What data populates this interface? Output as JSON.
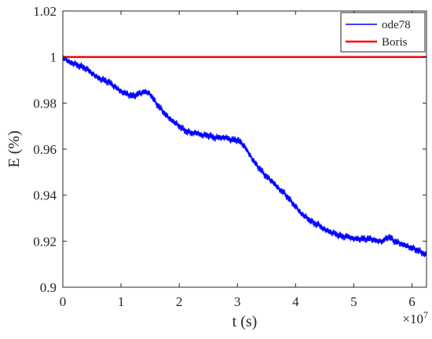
{
  "chart_data": {
    "type": "line",
    "xlabel": "t (s)",
    "ylabel": "E (%)",
    "x_exponent_label": "×10",
    "x_exponent_power": "7",
    "xlim": [
      0,
      6.25
    ],
    "ylim": [
      0.9,
      1.02
    ],
    "xticks": [
      0,
      1,
      2,
      3,
      4,
      5,
      6
    ],
    "xtick_labels": [
      "0",
      "1",
      "2",
      "3",
      "4",
      "5",
      "6"
    ],
    "yticks": [
      0.9,
      0.92,
      0.94,
      0.96,
      0.98,
      1.0,
      1.02
    ],
    "ytick_labels": [
      "0.9",
      "0.92",
      "0.94",
      "0.96",
      "0.98",
      "1",
      "1.02"
    ],
    "grid": false,
    "legend_position": "top-right",
    "x_unit_note": "t values in units of 10^7 s",
    "series": [
      {
        "name": "ode78",
        "color": "#0000ff",
        "noise_amplitude": 0.0018,
        "x": [
          0,
          0.05,
          0.1,
          0.2,
          0.3,
          0.4,
          0.5,
          0.6,
          0.7,
          0.8,
          0.9,
          1.0,
          1.1,
          1.2,
          1.3,
          1.4,
          1.5,
          1.6,
          1.7,
          1.8,
          1.9,
          2.0,
          2.1,
          2.2,
          2.3,
          2.4,
          2.5,
          2.6,
          2.7,
          2.8,
          2.9,
          3.0,
          3.1,
          3.2,
          3.3,
          3.4,
          3.5,
          3.6,
          3.7,
          3.8,
          3.9,
          4.0,
          4.1,
          4.2,
          4.3,
          4.4,
          4.5,
          4.6,
          4.7,
          4.8,
          4.9,
          5.0,
          5.1,
          5.2,
          5.3,
          5.4,
          5.5,
          5.6,
          5.7,
          5.8,
          5.9,
          6.0,
          6.1,
          6.25
        ],
        "y": [
          1.0,
          0.999,
          0.998,
          0.997,
          0.996,
          0.995,
          0.993,
          0.991,
          0.99,
          0.989,
          0.987,
          0.985,
          0.984,
          0.983,
          0.984,
          0.985,
          0.984,
          0.98,
          0.977,
          0.974,
          0.972,
          0.97,
          0.968,
          0.967,
          0.967,
          0.966,
          0.966,
          0.965,
          0.965,
          0.965,
          0.964,
          0.964,
          0.962,
          0.958,
          0.954,
          0.951,
          0.948,
          0.946,
          0.943,
          0.941,
          0.938,
          0.935,
          0.932,
          0.93,
          0.928,
          0.927,
          0.925,
          0.924,
          0.923,
          0.922,
          0.922,
          0.921,
          0.921,
          0.921,
          0.921,
          0.92,
          0.92,
          0.922,
          0.92,
          0.919,
          0.918,
          0.917,
          0.916,
          0.914
        ]
      },
      {
        "name": "Boris",
        "color": "#ff0000",
        "x": [
          0,
          6.25
        ],
        "y": [
          1.0,
          1.0
        ]
      }
    ]
  }
}
